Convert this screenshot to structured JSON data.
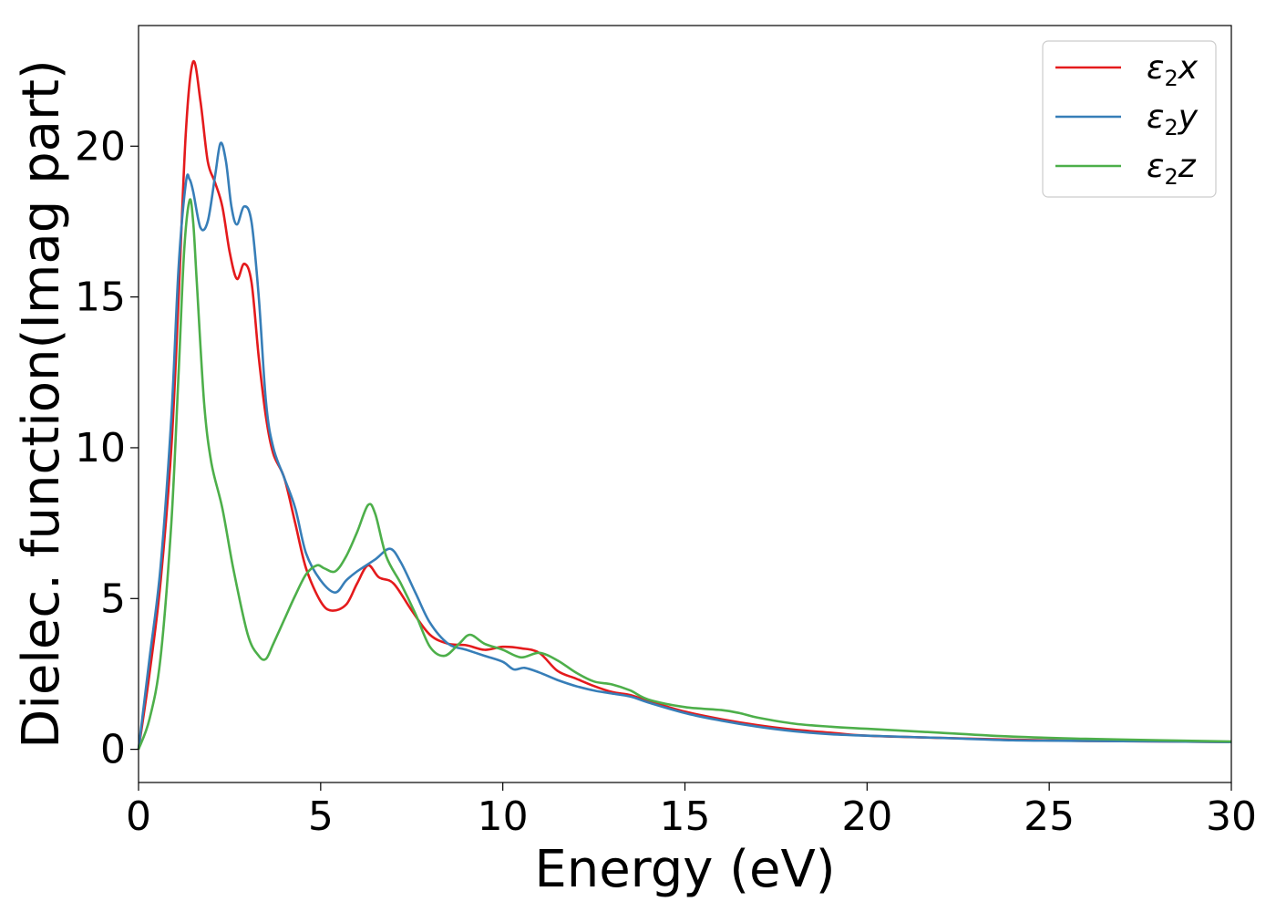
{
  "chart_data": {
    "type": "line",
    "title": "",
    "xlabel": "Energy (eV)",
    "ylabel": "Dielec. function(Imag part)",
    "xlim": [
      0,
      30
    ],
    "ylim": [
      -1.1,
      24
    ],
    "xticks": [
      0,
      5,
      10,
      15,
      20,
      25,
      30
    ],
    "yticks": [
      0,
      5,
      10,
      15,
      20
    ],
    "grid": false,
    "legend_position": "top-right",
    "series": [
      {
        "name": "ε₂x",
        "legend_base": "ε",
        "legend_sub": "2",
        "legend_var": "x",
        "color": "#e41a1c",
        "x": [
          0,
          0.3,
          0.6,
          0.9,
          1.1,
          1.3,
          1.5,
          1.7,
          1.9,
          2.1,
          2.3,
          2.5,
          2.7,
          2.9,
          3.1,
          3.3,
          3.5,
          3.7,
          4.0,
          4.3,
          4.6,
          5.0,
          5.3,
          5.7,
          6.0,
          6.3,
          6.6,
          7.0,
          7.5,
          8.0,
          8.5,
          9.0,
          9.5,
          10.0,
          10.5,
          11.0,
          11.5,
          12.0,
          12.5,
          13.0,
          13.5,
          14.0,
          15.0,
          16.0,
          17.0,
          18.0,
          19.0,
          20.0,
          22.0,
          24.0,
          26.0,
          28.0,
          30.0
        ],
        "y": [
          0,
          2.5,
          5.5,
          10.0,
          15.0,
          20.5,
          22.8,
          21.5,
          19.5,
          18.8,
          18.0,
          16.5,
          15.6,
          16.1,
          15.5,
          13.0,
          11.0,
          9.8,
          9.0,
          7.5,
          6.0,
          4.9,
          4.6,
          4.8,
          5.5,
          6.1,
          5.7,
          5.5,
          4.6,
          3.8,
          3.5,
          3.45,
          3.3,
          3.4,
          3.35,
          3.2,
          2.6,
          2.35,
          2.1,
          1.9,
          1.8,
          1.6,
          1.25,
          1.0,
          0.8,
          0.65,
          0.55,
          0.45,
          0.38,
          0.32,
          0.28,
          0.26,
          0.24
        ]
      },
      {
        "name": "ε₂y",
        "legend_base": "ε",
        "legend_sub": "2",
        "legend_var": "y",
        "color": "#377eb8",
        "x": [
          0,
          0.3,
          0.6,
          0.9,
          1.1,
          1.3,
          1.4,
          1.5,
          1.7,
          1.9,
          2.1,
          2.25,
          2.4,
          2.55,
          2.7,
          2.9,
          3.1,
          3.3,
          3.5,
          3.7,
          4.0,
          4.3,
          4.6,
          5.0,
          5.4,
          5.7,
          6.0,
          6.5,
          6.9,
          7.2,
          7.6,
          8.0,
          8.5,
          9.0,
          9.5,
          10.0,
          10.3,
          10.6,
          11.0,
          11.5,
          12.0,
          12.5,
          13.0,
          13.5,
          14.0,
          15.0,
          16.0,
          17.0,
          18.0,
          19.0,
          20.0,
          22.0,
          24.0,
          26.0,
          28.0,
          30.0
        ],
        "y": [
          0,
          3.0,
          6.0,
          11.0,
          16.0,
          18.8,
          18.9,
          18.5,
          17.3,
          17.5,
          19.0,
          20.1,
          19.5,
          18.0,
          17.4,
          18.0,
          17.5,
          15.0,
          11.5,
          10.0,
          9.0,
          8.0,
          6.5,
          5.6,
          5.2,
          5.6,
          5.9,
          6.3,
          6.65,
          6.2,
          5.2,
          4.2,
          3.5,
          3.3,
          3.1,
          2.9,
          2.65,
          2.7,
          2.55,
          2.3,
          2.1,
          1.95,
          1.85,
          1.75,
          1.55,
          1.2,
          0.95,
          0.75,
          0.6,
          0.5,
          0.45,
          0.38,
          0.3,
          0.28,
          0.26,
          0.24
        ]
      },
      {
        "name": "ε₂z",
        "legend_base": "ε",
        "legend_sub": "2",
        "legend_var": "z",
        "color": "#4daf4a",
        "x": [
          0,
          0.3,
          0.6,
          0.9,
          1.1,
          1.25,
          1.4,
          1.5,
          1.6,
          1.8,
          2.0,
          2.3,
          2.6,
          3.0,
          3.3,
          3.5,
          3.7,
          4.0,
          4.3,
          4.6,
          4.9,
          5.1,
          5.4,
          5.7,
          6.0,
          6.3,
          6.5,
          6.8,
          7.2,
          7.6,
          8.0,
          8.4,
          8.8,
          9.1,
          9.5,
          10.0,
          10.5,
          11.0,
          11.5,
          12.0,
          12.5,
          13.0,
          13.5,
          14.0,
          15.0,
          16.0,
          16.5,
          17.0,
          18.0,
          19.0,
          20.0,
          22.0,
          24.0,
          26.0,
          28.0,
          30.0
        ],
        "y": [
          0,
          1.0,
          3.0,
          7.5,
          12.5,
          16.5,
          18.2,
          17.5,
          15.5,
          11.5,
          9.5,
          8.0,
          6.0,
          3.8,
          3.1,
          3.0,
          3.5,
          4.3,
          5.1,
          5.8,
          6.1,
          6.0,
          5.9,
          6.4,
          7.2,
          8.1,
          7.8,
          6.4,
          5.5,
          4.5,
          3.4,
          3.1,
          3.5,
          3.8,
          3.5,
          3.3,
          3.05,
          3.2,
          2.95,
          2.55,
          2.25,
          2.15,
          1.95,
          1.65,
          1.4,
          1.3,
          1.2,
          1.05,
          0.85,
          0.75,
          0.68,
          0.55,
          0.42,
          0.35,
          0.3,
          0.26
        ]
      }
    ]
  }
}
